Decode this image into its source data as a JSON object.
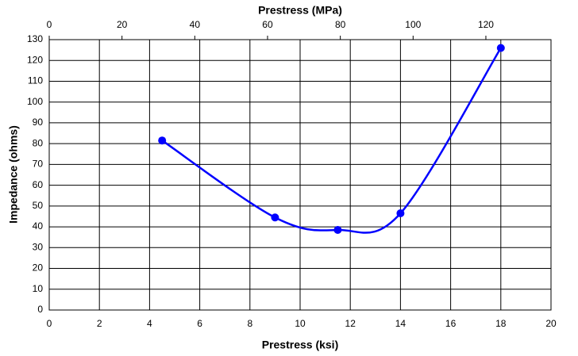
{
  "chart_data": {
    "type": "line",
    "x_label": "Prestress (ksi)",
    "x2_label": "Prestress (MPa)",
    "y_label": "Impedance (ohms)",
    "x": [
      4.5,
      9,
      11.5,
      14,
      18
    ],
    "series": [
      {
        "name": "Impedance",
        "color": "#0000ff",
        "values": [
          81.5,
          44.5,
          38.5,
          46.5,
          126
        ]
      }
    ],
    "xlim": [
      0,
      20
    ],
    "xticks": [
      0,
      2,
      4,
      6,
      8,
      10,
      12,
      14,
      16,
      18,
      20
    ],
    "x2lim": [
      0,
      137.9
    ],
    "x2ticks": [
      0,
      20,
      40,
      60,
      80,
      100,
      120
    ],
    "ylim": [
      0,
      130
    ],
    "yticks": [
      0,
      10,
      20,
      30,
      40,
      50,
      60,
      70,
      80,
      90,
      100,
      110,
      120,
      130
    ],
    "grid": true,
    "smooth": true
  }
}
